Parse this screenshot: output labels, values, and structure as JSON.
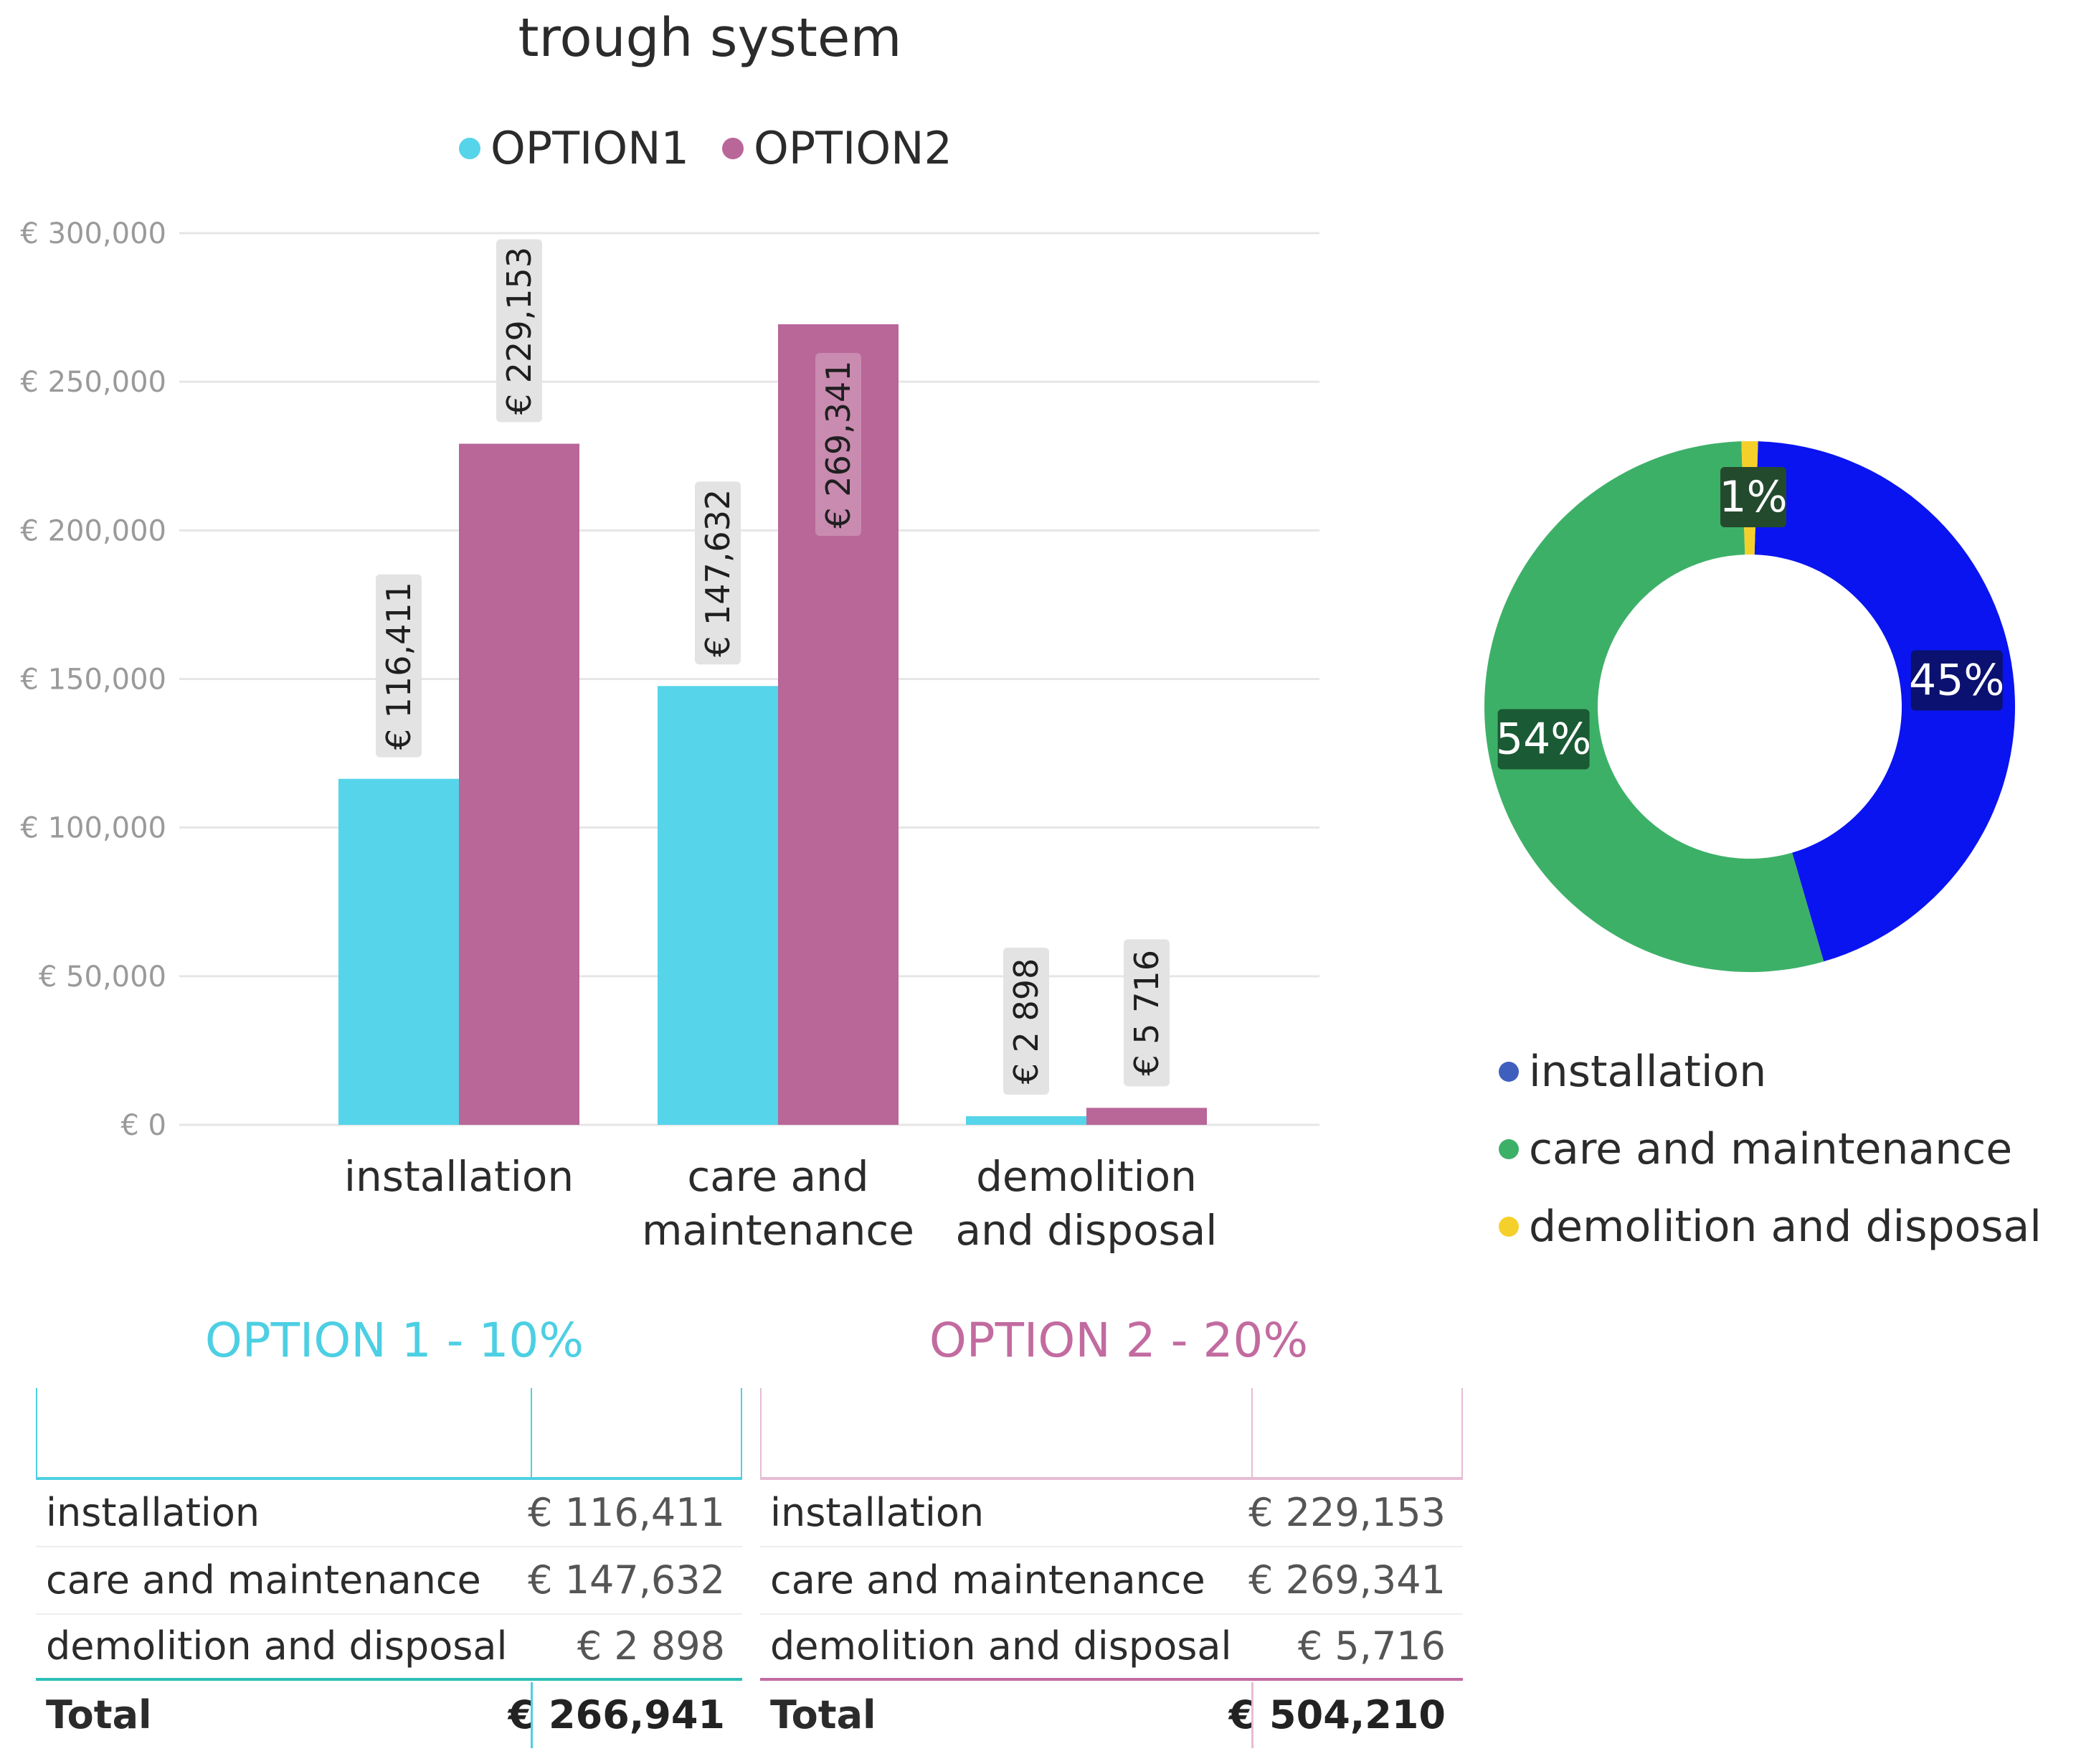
{
  "chart_data": [
    {
      "type": "bar",
      "title": "trough system",
      "categories": [
        "installation",
        "care and maintenance",
        "demolition and disposal"
      ],
      "category_lines": [
        [
          "installation"
        ],
        [
          "care and",
          "maintenance"
        ],
        [
          "demolition",
          "and disposal"
        ]
      ],
      "series": [
        {
          "name": "OPTION1",
          "color": "#55D4EA",
          "values": [
            116411,
            147632,
            2898
          ],
          "labels": [
            "€ 116,411",
            "€ 147,632",
            "€ 2 898"
          ]
        },
        {
          "name": "OPTION2",
          "color": "#B96699",
          "values": [
            229153,
            269341,
            5716
          ],
          "labels": [
            "€ 229,153",
            "€ 269,341",
            "€ 5 716"
          ]
        }
      ],
      "y_ticks": [
        0,
        50000,
        100000,
        150000,
        200000,
        250000,
        300000
      ],
      "y_tick_labels": [
        "€ 0",
        "€ 50,000",
        "€ 100,000",
        "€ 150,000",
        "€ 200,000",
        "€ 250,000",
        "€ 300,000"
      ],
      "ylim": [
        0,
        300000
      ],
      "grid": true,
      "legend_position": "top-center"
    },
    {
      "type": "pie",
      "variant": "donut",
      "slices": [
        {
          "name": "installation",
          "value": 45,
          "label": "45%",
          "color": "#0A14F0",
          "label_bg": "#0A1170"
        },
        {
          "name": "care and maintenance",
          "value": 54,
          "label": "54%",
          "color": "#3DB068",
          "label_bg": "#1A5A34"
        },
        {
          "name": "demolition and disposal",
          "value": 1,
          "label": "1%",
          "color": "#F5D02A",
          "label_bg": "#244A2E"
        }
      ],
      "legend": [
        {
          "name": "installation",
          "color": "#3F5FBF"
        },
        {
          "name": "care and maintenance",
          "color": "#3DB068"
        },
        {
          "name": "demolition and disposal",
          "color": "#F5D02A"
        }
      ],
      "legend_position": "bottom-left"
    },
    {
      "type": "table",
      "title": "OPTION 1 - 10%",
      "color": "#4DCFE3",
      "rows": [
        {
          "label": "installation",
          "value": "€ 116,411"
        },
        {
          "label": "care and maintenance",
          "value": "€ 147,632"
        },
        {
          "label": "demolition and disposal",
          "value": "€ 2 898"
        }
      ],
      "total": {
        "label": "Total",
        "value": "€ 266,941"
      }
    },
    {
      "type": "table",
      "title": "OPTION 2 - 20%",
      "color": "#C26BA0",
      "rows": [
        {
          "label": "installation",
          "value": "€ 229,153"
        },
        {
          "label": "care and maintenance",
          "value": "€ 269,341"
        },
        {
          "label": "demolition and disposal",
          "value": "€ 5,716"
        }
      ],
      "total": {
        "label": "Total",
        "value": "€ 504,210"
      }
    }
  ]
}
